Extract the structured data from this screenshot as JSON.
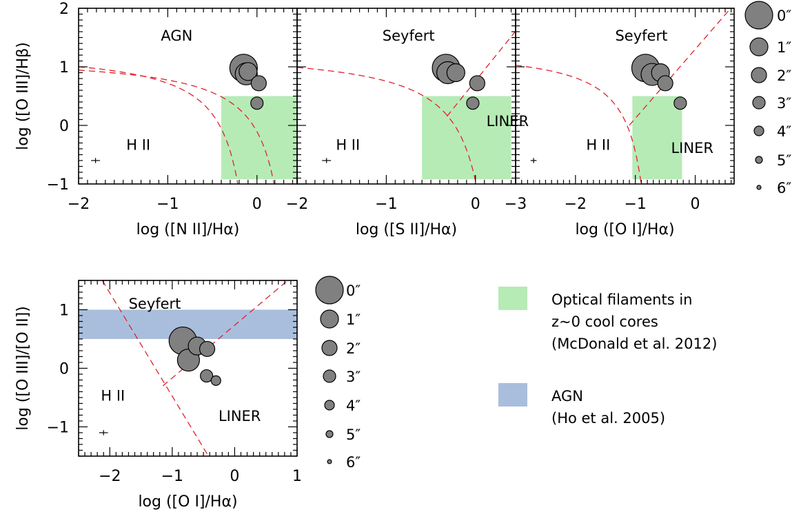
{
  "colors": {
    "point_fill": "#808080",
    "point_stroke": "#000000",
    "boundary_line": "#e0202a",
    "filament_box": "#b6ebb6",
    "agn_band": "#a9bedd"
  },
  "chart_data": [
    {
      "type": "scatter",
      "panel": "nii",
      "xlabel": "log ([N II]/Hα)",
      "ylabel": "log ([O III]/Hβ)",
      "xlim": [
        -2,
        0.45
      ],
      "ylim": [
        -1,
        2
      ],
      "xticks": [
        -2,
        -1,
        0
      ],
      "yticks": [
        -1,
        0,
        1,
        2
      ],
      "ytick_labels": [
        "−1",
        "0",
        "1",
        "2"
      ],
      "xtick_labels": [
        "−2",
        "−1",
        "0"
      ],
      "regions": [
        {
          "label": "AGN",
          "x": -0.9,
          "y": 1.45
        },
        {
          "label": "H II",
          "x": -1.33,
          "y": -0.42
        }
      ],
      "shaded_box": {
        "x": [
          -0.4,
          0.45
        ],
        "y": [
          -0.92,
          0.5
        ]
      },
      "boundaries": [
        {
          "name": "kewley",
          "asymptote": 0.47,
          "a": 0.61,
          "b": 1.19
        },
        {
          "name": "kauffmann",
          "asymptote": 0.05,
          "a": 0.61,
          "b": 1.3
        }
      ],
      "points": [
        {
          "radius": "0″",
          "x": -0.15,
          "y": 0.98
        },
        {
          "radius": "1″",
          "x": -0.12,
          "y": 0.88
        },
        {
          "radius": "2″",
          "x": -0.1,
          "y": 0.92
        },
        {
          "radius": "3″",
          "x": 0.02,
          "y": 0.72
        },
        {
          "radius": "4″",
          "x": 0.0,
          "y": 0.38
        }
      ],
      "error_bar": {
        "x": -1.81,
        "y": -0.6,
        "dx": 0.05,
        "dy": 0.02
      }
    },
    {
      "type": "scatter",
      "panel": "sii",
      "xlabel": "log ([S II]/Hα)",
      "xlim": [
        -2,
        0.45
      ],
      "ylim": [
        -1,
        2
      ],
      "xticks": [
        -2,
        -1,
        0
      ],
      "xtick_labels": [
        "−2",
        "−1",
        "0"
      ],
      "regions": [
        {
          "label": "Seyfert",
          "x": -0.75,
          "y": 1.45
        },
        {
          "label": "LINER",
          "x": 0.36,
          "y": -0.01
        },
        {
          "label": "H II",
          "x": -1.43,
          "y": -0.42
        }
      ],
      "shaded_box": {
        "x": [
          -0.6,
          0.4
        ],
        "y": [
          -0.92,
          0.5
        ]
      },
      "boundaries": [
        {
          "name": "kewley",
          "asymptote": 0.32,
          "a": 0.72,
          "b": 1.3
        },
        {
          "name": "seyfert-liner",
          "slope": 1.89,
          "intercept": 0.76,
          "x0": -0.32
        }
      ],
      "points": [
        {
          "radius": "0″",
          "x": -0.33,
          "y": 0.98
        },
        {
          "radius": "1″",
          "x": -0.31,
          "y": 0.9
        },
        {
          "radius": "2″",
          "x": -0.22,
          "y": 0.9
        },
        {
          "radius": "3″",
          "x": 0.02,
          "y": 0.72
        },
        {
          "radius": "4″",
          "x": -0.03,
          "y": 0.38
        }
      ],
      "error_bar": {
        "x": -1.67,
        "y": -0.6,
        "dx": 0.05,
        "dy": 0.02
      }
    },
    {
      "type": "scatter",
      "panel": "oi",
      "xlabel": "log ([O I]/Hα)",
      "xlim": [
        -3,
        0.65
      ],
      "ylim": [
        -1,
        2
      ],
      "xticks": [
        -3,
        -2,
        -1,
        0
      ],
      "xtick_labels": [
        "−3",
        "−2",
        "−1",
        "0"
      ],
      "regions": [
        {
          "label": "Seyfert",
          "x": -0.9,
          "y": 1.45
        },
        {
          "label": "LINER",
          "x": -0.05,
          "y": -0.47
        },
        {
          "label": "H II",
          "x": -1.62,
          "y": -0.42
        }
      ],
      "shaded_box": {
        "x": [
          -1.05,
          -0.22
        ],
        "y": [
          -0.92,
          0.5
        ]
      },
      "boundaries": [
        {
          "name": "kewley",
          "asymptote": -0.59,
          "a": 0.73,
          "b": 1.33
        },
        {
          "name": "seyfert-liner",
          "slope": 1.18,
          "intercept": 1.3,
          "x0": -1.1
        }
      ],
      "points": [
        {
          "radius": "0″",
          "x": -0.83,
          "y": 0.98
        },
        {
          "radius": "1″",
          "x": -0.72,
          "y": 0.87
        },
        {
          "radius": "2″",
          "x": -0.58,
          "y": 0.9
        },
        {
          "radius": "3″",
          "x": -0.5,
          "y": 0.72
        },
        {
          "radius": "4″",
          "x": -0.25,
          "y": 0.38
        }
      ],
      "error_bar": {
        "x": -2.7,
        "y": -0.6,
        "dx": 0.05,
        "dy": 0.02
      }
    },
    {
      "type": "scatter",
      "panel": "oii",
      "xlabel": "log ([O I]/Hα)",
      "ylabel": "log ([O III]/[O II])",
      "xlim": [
        -2.5,
        1
      ],
      "ylim": [
        -1.5,
        1.5
      ],
      "xticks": [
        -2,
        -1,
        0,
        1
      ],
      "xtick_labels": [
        "−2",
        "−1",
        "0",
        "1"
      ],
      "yticks": [
        -1,
        0,
        1
      ],
      "ytick_labels": [
        "−1",
        "0",
        "1"
      ],
      "regions": [
        {
          "label": "Seyfert",
          "x": -1.28,
          "y": 1.02
        },
        {
          "label": "H II",
          "x": -1.95,
          "y": -0.55
        },
        {
          "label": "LINER",
          "x": 0.08,
          "y": -0.9
        }
      ],
      "shaded_band": {
        "y": [
          0.5,
          1.0
        ]
      },
      "boundaries": [
        {
          "name": "hii-line",
          "points": [
            [
              -2.12,
              1.5
            ],
            [
              -0.42,
              -1.5
            ]
          ]
        },
        {
          "name": "seyfert-liner",
          "points": [
            [
              -1.15,
              -0.3
            ],
            [
              0.85,
              1.5
            ]
          ]
        }
      ],
      "points": [
        {
          "radius": "0″",
          "x": -0.83,
          "y": 0.47
        },
        {
          "radius": "1″",
          "x": -0.74,
          "y": 0.14
        },
        {
          "radius": "2″",
          "x": -0.6,
          "y": 0.38
        },
        {
          "radius": "3″",
          "x": -0.44,
          "y": 0.33
        },
        {
          "radius": "4″",
          "x": -0.45,
          "y": -0.13
        },
        {
          "radius": "5″",
          "x": -0.3,
          "y": -0.21
        }
      ],
      "error_bar": {
        "x": -2.1,
        "y": -1.1,
        "dx": 0.07,
        "dy": 0.02
      }
    }
  ],
  "size_key_top": {
    "labels": [
      "0″",
      "1″",
      "2″",
      "3″",
      "4″",
      "5″",
      "6″"
    ]
  },
  "size_key_bottom": {
    "labels": [
      "0″",
      "1″",
      "2″",
      "3″",
      "4″",
      "5″",
      "6″"
    ]
  },
  "legend": {
    "filaments_line1": "Optical filaments in",
    "filaments_line2": "z~0 cool cores",
    "filaments_line3": "(McDonald et al. 2012)",
    "agn_line1": "AGN",
    "agn_line2": "(Ho et al. 2005)"
  }
}
